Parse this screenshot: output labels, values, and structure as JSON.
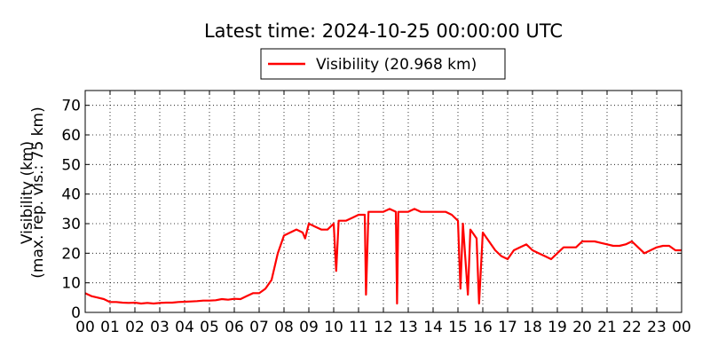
{
  "chart_data": {
    "type": "line",
    "title": "Latest time: 2024-10-25 00:00:00 UTC",
    "ylabel": [
      "Visibility (km)",
      "(max. rep. vis.: 75 km)"
    ],
    "xlim": [
      0,
      24
    ],
    "ylim": [
      0,
      75
    ],
    "xticks": [
      {
        "value": 0,
        "label": "00"
      },
      {
        "value": 1,
        "label": "01"
      },
      {
        "value": 2,
        "label": "02"
      },
      {
        "value": 3,
        "label": "03"
      },
      {
        "value": 4,
        "label": "04"
      },
      {
        "value": 5,
        "label": "05"
      },
      {
        "value": 6,
        "label": "06"
      },
      {
        "value": 7,
        "label": "07"
      },
      {
        "value": 8,
        "label": "08"
      },
      {
        "value": 9,
        "label": "09"
      },
      {
        "value": 10,
        "label": "10"
      },
      {
        "value": 11,
        "label": "11"
      },
      {
        "value": 12,
        "label": "12"
      },
      {
        "value": 13,
        "label": "13"
      },
      {
        "value": 14,
        "label": "14"
      },
      {
        "value": 15,
        "label": "15"
      },
      {
        "value": 16,
        "label": "16"
      },
      {
        "value": 17,
        "label": "17"
      },
      {
        "value": 18,
        "label": "18"
      },
      {
        "value": 19,
        "label": "19"
      },
      {
        "value": 20,
        "label": "20"
      },
      {
        "value": 21,
        "label": "21"
      },
      {
        "value": 22,
        "label": "22"
      },
      {
        "value": 23,
        "label": "23"
      },
      {
        "value": 24,
        "label": "00"
      }
    ],
    "yticks": [
      0,
      10,
      20,
      30,
      40,
      50,
      60,
      70
    ],
    "grid": true,
    "legend": "top",
    "x": [
      0,
      0.25,
      0.5,
      0.75,
      1,
      1.25,
      1.5,
      1.75,
      2,
      2.25,
      2.5,
      2.75,
      3,
      3.25,
      3.5,
      3.75,
      4,
      4.25,
      4.5,
      4.75,
      5,
      5.25,
      5.5,
      5.75,
      6,
      6.25,
      6.5,
      6.75,
      7,
      7.25,
      7.5,
      7.75,
      8,
      8.25,
      8.5,
      8.75,
      8.85,
      9,
      9.25,
      9.5,
      9.75,
      10,
      10.1,
      10.2,
      10.5,
      10.75,
      11,
      11.25,
      11.3,
      11.4,
      11.75,
      12,
      12.25,
      12.5,
      12.55,
      12.6,
      12.75,
      13,
      13.25,
      13.5,
      13.75,
      14,
      14.25,
      14.5,
      14.75,
      15,
      15.1,
      15.2,
      15.4,
      15.5,
      15.75,
      15.85,
      16,
      16.25,
      16.5,
      16.75,
      17,
      17.25,
      17.5,
      17.75,
      18,
      18.25,
      18.5,
      18.75,
      19,
      19.25,
      19.5,
      19.75,
      20,
      20.25,
      20.5,
      20.75,
      21,
      21.25,
      21.5,
      21.75,
      22,
      22.25,
      22.5,
      22.75,
      23,
      23.25,
      23.5,
      23.75,
      24
    ],
    "series": [
      {
        "name": "Visibility (20.968 km)",
        "color": "#ff0000",
        "values": [
          6.5,
          5.5,
          5,
          4.5,
          3.5,
          3.5,
          3.3,
          3.2,
          3.3,
          3,
          3.2,
          3,
          3.2,
          3.3,
          3.3,
          3.5,
          3.6,
          3.7,
          3.8,
          4,
          4,
          4.1,
          4.5,
          4.3,
          4.6,
          4.5,
          5.5,
          6.5,
          6.5,
          8,
          11,
          20,
          26,
          27,
          28,
          27,
          25,
          30,
          29,
          28,
          28,
          30,
          14,
          31,
          31,
          32,
          33,
          33,
          6,
          34,
          34,
          34,
          35,
          34,
          3,
          34,
          34,
          34,
          35,
          34,
          34,
          34,
          34,
          34,
          33,
          31,
          8,
          30,
          6,
          28,
          25,
          3,
          27,
          24,
          21,
          19,
          18,
          21,
          22,
          23,
          21,
          20,
          19,
          18,
          20,
          22,
          22,
          22,
          24,
          24,
          24,
          23.5,
          23,
          22.5,
          22.5,
          23,
          24,
          22,
          20,
          21,
          22,
          22.5,
          22.5,
          21,
          21
        ]
      }
    ]
  }
}
